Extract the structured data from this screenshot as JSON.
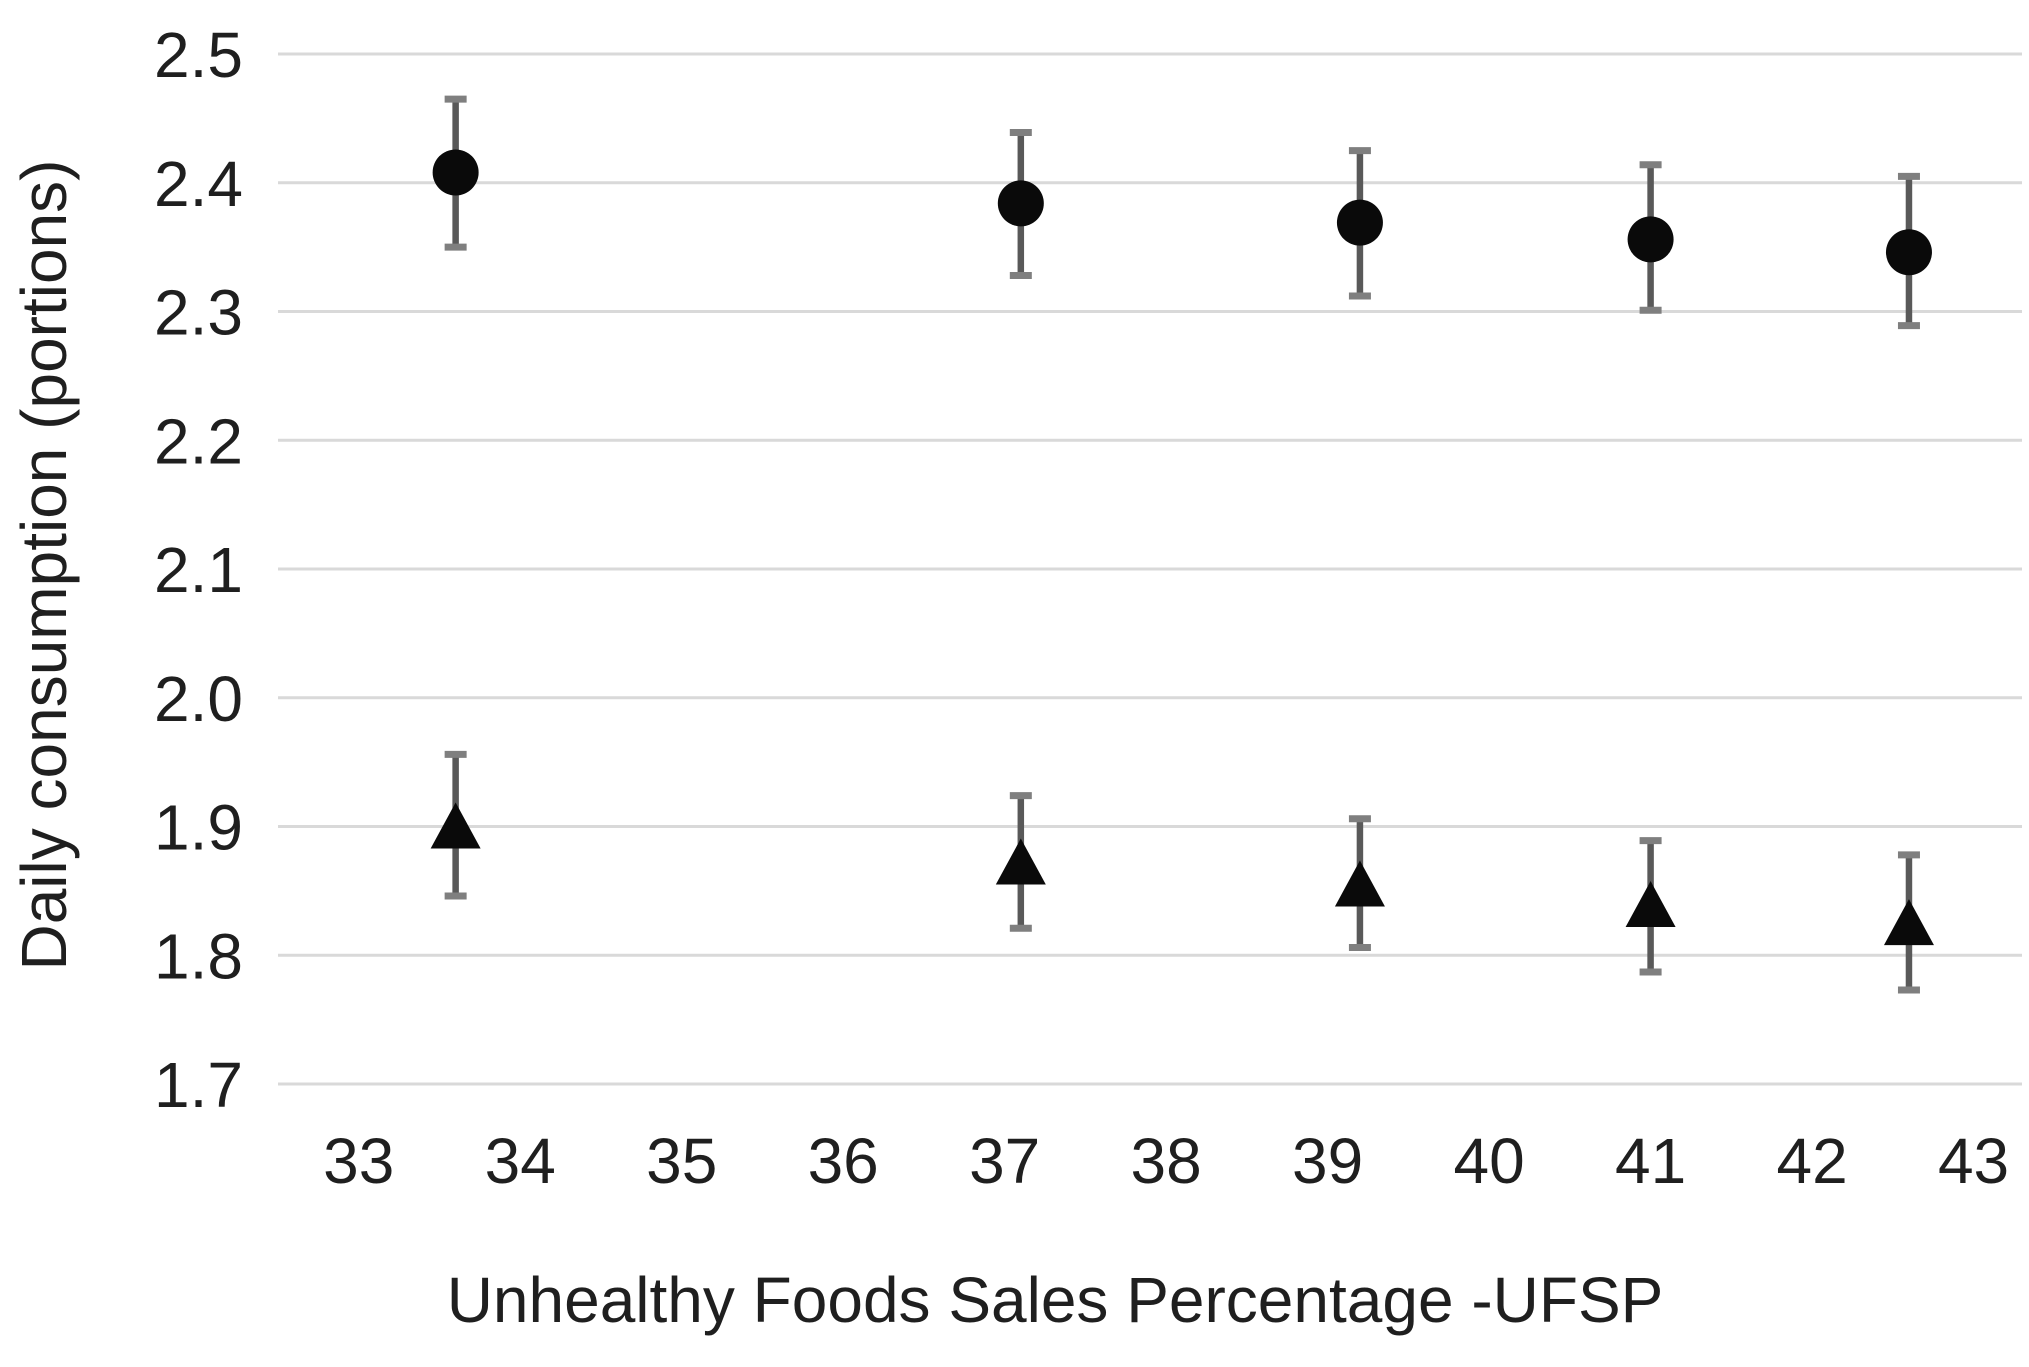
{
  "chart_data": {
    "type": "scatter",
    "title": "",
    "xlabel": "Unhealthy Foods Sales Percentage -UFSP",
    "ylabel": "Daily consumption (portions)",
    "xlim": [
      32.5,
      43.3
    ],
    "ylim": [
      1.7,
      2.5
    ],
    "grid": "horizontal-only",
    "legend": "none",
    "x_ticks": [
      {
        "value": 33,
        "label": "33"
      },
      {
        "value": 34,
        "label": "34"
      },
      {
        "value": 35,
        "label": "35"
      },
      {
        "value": 36,
        "label": "36"
      },
      {
        "value": 37,
        "label": "37"
      },
      {
        "value": 38,
        "label": "38"
      },
      {
        "value": 39,
        "label": "39"
      },
      {
        "value": 40,
        "label": "40"
      },
      {
        "value": 41,
        "label": "41"
      },
      {
        "value": 42,
        "label": "42"
      },
      {
        "value": 43,
        "label": "43"
      }
    ],
    "y_ticks": [
      {
        "value": 2.5,
        "label": "2.5"
      },
      {
        "value": 2.4,
        "label": "2.4"
      },
      {
        "value": 2.3,
        "label": "2.3"
      },
      {
        "value": 2.2,
        "label": "2.2"
      },
      {
        "value": 2.1,
        "label": "2.1"
      },
      {
        "value": 2.0,
        "label": "2.0"
      },
      {
        "value": 1.9,
        "label": "1.9"
      },
      {
        "value": 1.8,
        "label": "1.8"
      },
      {
        "value": 1.7,
        "label": "1.7"
      }
    ],
    "series": [
      {
        "name": "circle-series",
        "marker": "circle",
        "points": [
          {
            "x": 33.6,
            "y": 2.408,
            "err_low": 2.35,
            "err_high": 2.465
          },
          {
            "x": 37.1,
            "y": 2.384,
            "err_low": 2.328,
            "err_high": 2.439
          },
          {
            "x": 39.2,
            "y": 2.369,
            "err_low": 2.312,
            "err_high": 2.425
          },
          {
            "x": 41.0,
            "y": 2.356,
            "err_low": 2.301,
            "err_high": 2.414
          },
          {
            "x": 42.6,
            "y": 2.346,
            "err_low": 2.289,
            "err_high": 2.405
          }
        ]
      },
      {
        "name": "triangle-series",
        "marker": "triangle",
        "points": [
          {
            "x": 33.6,
            "y": 1.9,
            "err_low": 1.846,
            "err_high": 1.956
          },
          {
            "x": 37.1,
            "y": 1.872,
            "err_low": 1.821,
            "err_high": 1.924
          },
          {
            "x": 39.2,
            "y": 1.855,
            "err_low": 1.806,
            "err_high": 1.906
          },
          {
            "x": 41.0,
            "y": 1.839,
            "err_low": 1.787,
            "err_high": 1.889
          },
          {
            "x": 42.6,
            "y": 1.825,
            "err_low": 1.773,
            "err_high": 1.878
          }
        ]
      }
    ]
  },
  "colors": {
    "background": "#ffffff",
    "grid": "#d9d9d9",
    "marker": "#0a0a0a",
    "error_bar": "#595959",
    "error_cap": "#7f7f7f",
    "text": "#1f1f1f"
  }
}
